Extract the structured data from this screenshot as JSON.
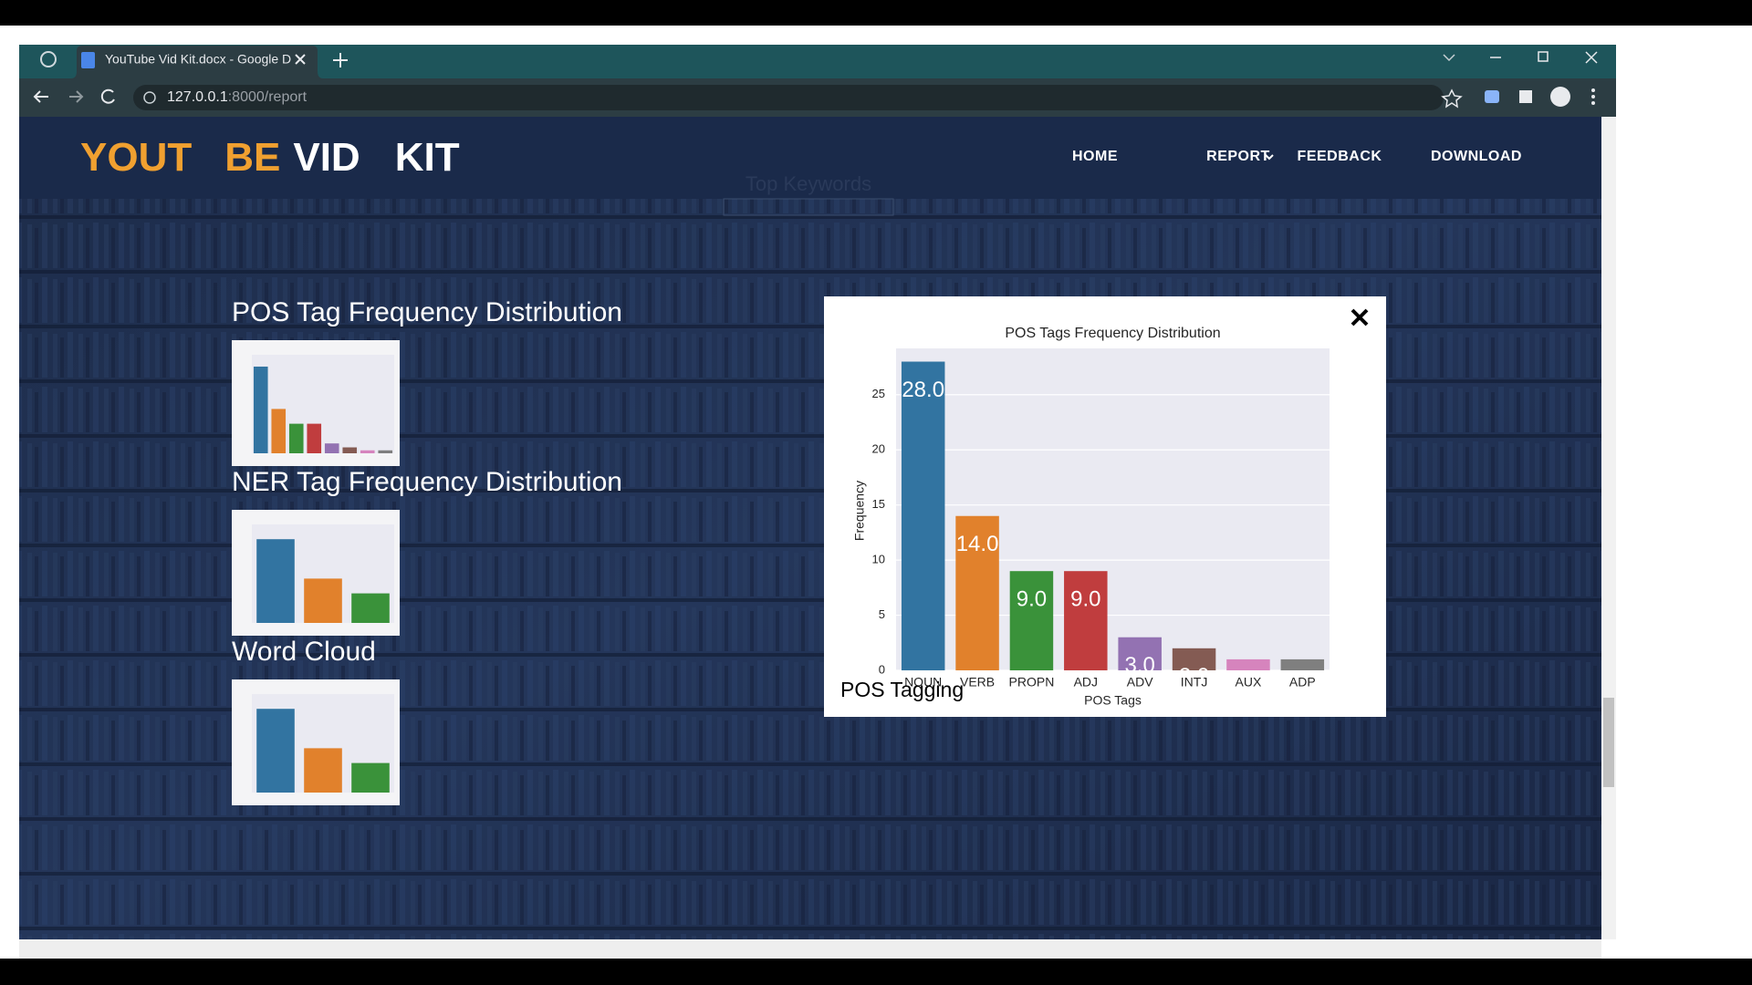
{
  "browser": {
    "tab_title": "YouTube Vid Kit.docx - Google D",
    "url_host": "127.0.0.1",
    "url_path": ":8000/report"
  },
  "site": {
    "logo": [
      "YOUT",
      "BE",
      "VID",
      "KIT"
    ],
    "nav": [
      "HOME",
      "REPORT",
      "FEEDBACK",
      "DOWNLOAD"
    ],
    "background_text": "Top Keywords",
    "sections": [
      "POS Tag Frequency Distribution",
      "NER Tag Frequency Distribution",
      "Word Cloud"
    ]
  },
  "modal": {
    "caption": "POS Tagging"
  },
  "chart_data": {
    "type": "bar",
    "title": "POS Tags Frequency Distribution",
    "xlabel": "POS Tags",
    "ylabel": "Frequency",
    "categories": [
      "NOUN",
      "VERB",
      "PROPN",
      "ADJ",
      "ADV",
      "INTJ",
      "AUX",
      "ADP"
    ],
    "values": [
      28,
      14,
      9,
      9,
      3,
      2,
      1,
      1
    ],
    "value_labels": [
      "28.0",
      "14.0",
      "9.0",
      "9.0",
      "3.0",
      "2.0",
      "1.0",
      "1.0"
    ],
    "colors": [
      "#3274a1",
      "#e1812c",
      "#3a923a",
      "#c03d3e",
      "#9372b2",
      "#845b53",
      "#d684bd",
      "#7f7f7f"
    ],
    "ylim": [
      0,
      29.2
    ],
    "yticks": [
      0,
      5,
      10,
      15,
      20,
      25
    ],
    "grid": true,
    "background": "#eaeaf2"
  }
}
